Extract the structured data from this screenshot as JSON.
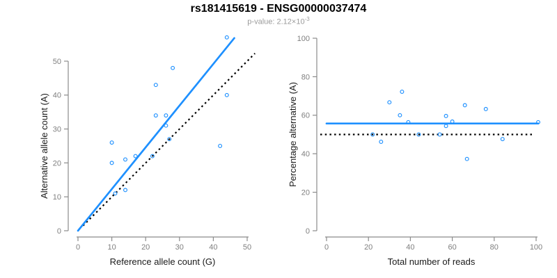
{
  "header": {
    "title": "rs181415619 - ENSG00000037474",
    "subtitle_prefix": "p-value: 2.12×10",
    "subtitle_exponent": "-3"
  },
  "colors": {
    "accent_blue": "#1E90FF",
    "reference_line": "#000000",
    "axis_gray": "#8b8b8b",
    "tick_label_gray": "#7f7f7f",
    "subtitle_gray": "#9b9b9b"
  },
  "chart_data": [
    {
      "type": "scatter",
      "name": "allele-count-scatter",
      "xlabel": "Reference allele count (G)",
      "ylabel": "Alternative allele count (A)",
      "xlim": [
        0,
        50
      ],
      "ylim": [
        0,
        50
      ],
      "xticks": [
        0,
        10,
        20,
        30,
        40,
        50
      ],
      "yticks": [
        0,
        10,
        20,
        30,
        40,
        50
      ],
      "grid": false,
      "points": [
        [
          44,
          57
        ],
        [
          28,
          48
        ],
        [
          23,
          43
        ],
        [
          44,
          40
        ],
        [
          23,
          34
        ],
        [
          26,
          34
        ],
        [
          26,
          31
        ],
        [
          27,
          27
        ],
        [
          10,
          26
        ],
        [
          42,
          25
        ],
        [
          17,
          22
        ],
        [
          22,
          22
        ],
        [
          14,
          21
        ],
        [
          10,
          20
        ],
        [
          14,
          12
        ],
        [
          11,
          11
        ]
      ],
      "lines": [
        {
          "name": "identity-line",
          "style": "dotted",
          "color": "#000000",
          "width": 2.2,
          "points": [
            [
              1.5,
              1.5
            ],
            [
              52.3,
              52.3
            ]
          ]
        },
        {
          "name": "regression-line",
          "style": "solid",
          "color": "#1E90FF",
          "width": 2.7,
          "points": [
            [
              0,
              0
            ],
            [
              46.2,
              56.8
            ]
          ]
        }
      ]
    },
    {
      "type": "scatter",
      "name": "percentage-vs-reads-scatter",
      "xlabel": "Total number of reads",
      "ylabel": "Percentage alternative (A)",
      "xlim": [
        0,
        100
      ],
      "ylim": [
        0,
        100
      ],
      "xticks": [
        0,
        20,
        40,
        60,
        80,
        100
      ],
      "yticks": [
        0,
        20,
        40,
        60,
        80,
        100
      ],
      "grid": false,
      "points": [
        [
          101,
          56.4
        ],
        [
          76,
          63.2
        ],
        [
          66,
          65.2
        ],
        [
          84,
          47.6
        ],
        [
          57,
          59.6
        ],
        [
          60,
          56.7
        ],
        [
          57,
          54.4
        ],
        [
          54,
          50
        ],
        [
          36,
          72.2
        ],
        [
          67,
          37.3
        ],
        [
          39,
          56.4
        ],
        [
          44,
          50
        ],
        [
          35,
          60
        ],
        [
          30,
          66.7
        ],
        [
          26,
          46.2
        ],
        [
          22,
          50
        ]
      ],
      "lines": [
        {
          "name": "fifty-percent-line",
          "style": "dotted",
          "color": "#000000",
          "width": 2.2,
          "points": [
            [
              -3,
              50
            ],
            [
              99.3,
              50
            ]
          ]
        },
        {
          "name": "mean-percentage-line",
          "style": "solid",
          "color": "#1E90FF",
          "width": 2.7,
          "points": [
            [
              0,
              55.7
            ],
            [
              101,
              55.7
            ]
          ]
        }
      ]
    }
  ]
}
